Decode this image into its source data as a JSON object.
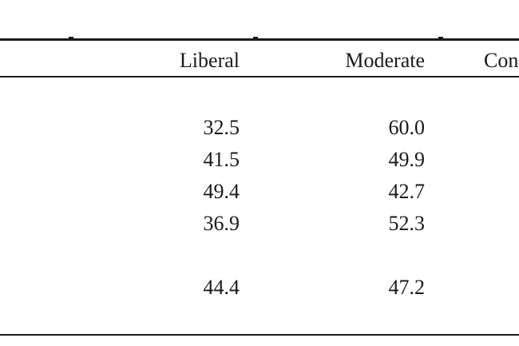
{
  "table": {
    "headers": {
      "liberal": "Liberal",
      "moderate": "Moderate",
      "conservative": "Con"
    },
    "rows": [
      {
        "liberal": "32.5",
        "moderate": "60.0"
      },
      {
        "liberal": "41.5",
        "moderate": "49.9"
      },
      {
        "liberal": "49.4",
        "moderate": "42.7"
      },
      {
        "liberal": "36.9",
        "moderate": "52.3"
      },
      {
        "liberal": "44.4",
        "moderate": "47.2"
      }
    ]
  }
}
